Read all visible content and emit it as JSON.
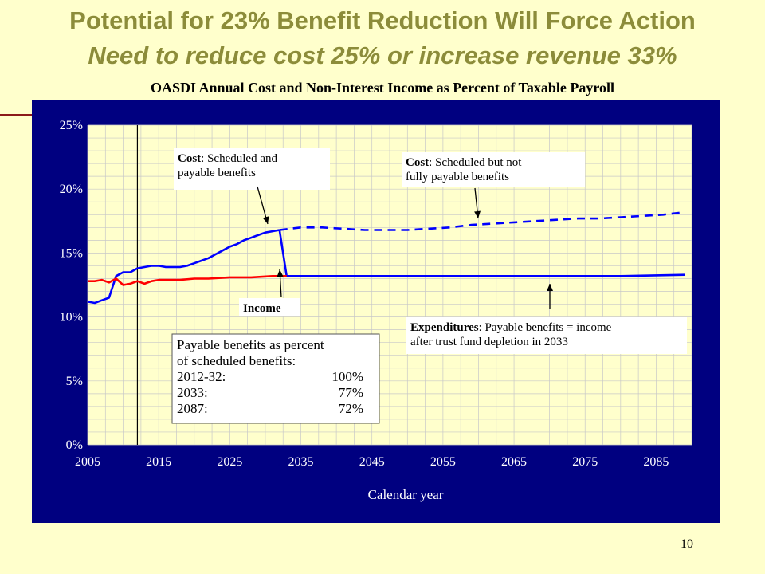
{
  "slide": {
    "title": "Potential for 23% Benefit Reduction Will Force Action",
    "subtitle": "Need to reduce cost 25% or increase revenue 33%",
    "page_number": "10"
  },
  "colors": {
    "background": "#ffffcc",
    "title": "#8c8c3a",
    "panel": "#000080",
    "plot_area": "#ffffcc",
    "cost_line": "#0000ff",
    "income_line": "#ff0000",
    "grid": "#c8c8c8"
  },
  "chart_data": {
    "type": "line",
    "title": "OASDI Annual Cost and Non-Interest Income as Percent of Taxable Payroll",
    "xlabel": "Calendar year",
    "ylabel": "",
    "xlim": [
      2005,
      2090
    ],
    "ylim": [
      0,
      25
    ],
    "x_ticks": [
      2005,
      2015,
      2025,
      2035,
      2045,
      2055,
      2065,
      2075,
      2085
    ],
    "y_ticks": [
      0,
      5,
      10,
      15,
      20,
      25
    ],
    "y_tick_labels": [
      "0%",
      "5%",
      "10%",
      "15%",
      "20%",
      "25%"
    ],
    "grid": true,
    "vertical_marker_x": 2012,
    "series": [
      {
        "key": "cost_scheduled_payable",
        "style": "solid",
        "color": "#0000ff",
        "x": [
          2005,
          2006,
          2007,
          2008,
          2009,
          2010,
          2011,
          2012,
          2013,
          2014,
          2015,
          2016,
          2017,
          2018,
          2019,
          2020,
          2021,
          2022,
          2023,
          2024,
          2025,
          2026,
          2027,
          2028,
          2029,
          2030,
          2031,
          2032
        ],
        "y": [
          11.2,
          11.1,
          11.3,
          11.5,
          13.2,
          13.5,
          13.5,
          13.8,
          13.9,
          14.0,
          14.0,
          13.9,
          13.9,
          13.9,
          14.0,
          14.2,
          14.4,
          14.6,
          14.9,
          15.2,
          15.5,
          15.7,
          16.0,
          16.2,
          16.4,
          16.6,
          16.7,
          16.8
        ]
      },
      {
        "key": "cost_scheduled_not_payable",
        "style": "dashed",
        "color": "#0000ff",
        "x": [
          2032,
          2035,
          2038,
          2041,
          2044,
          2047,
          2050,
          2053,
          2056,
          2059,
          2062,
          2065,
          2068,
          2071,
          2074,
          2077,
          2080,
          2083,
          2086,
          2089
        ],
        "y": [
          16.8,
          17.0,
          17.0,
          16.9,
          16.8,
          16.8,
          16.8,
          16.9,
          17.0,
          17.2,
          17.3,
          17.4,
          17.5,
          17.6,
          17.7,
          17.7,
          17.8,
          17.9,
          18.0,
          18.2
        ]
      },
      {
        "key": "expenditures_payable",
        "style": "solid",
        "color": "#0000ff",
        "x": [
          2032,
          2033,
          2040,
          2050,
          2060,
          2070,
          2080,
          2089
        ],
        "y": [
          16.8,
          13.2,
          13.2,
          13.2,
          13.2,
          13.2,
          13.2,
          13.3
        ]
      },
      {
        "key": "income",
        "style": "solid",
        "color": "#ff0000",
        "x": [
          2005,
          2006,
          2007,
          2008,
          2009,
          2010,
          2011,
          2012,
          2013,
          2014,
          2015,
          2016,
          2018,
          2020,
          2022,
          2025,
          2028,
          2031,
          2033
        ],
        "y": [
          12.8,
          12.8,
          12.9,
          12.7,
          13.0,
          12.5,
          12.6,
          12.8,
          12.6,
          12.8,
          12.9,
          12.9,
          12.9,
          13.0,
          13.0,
          13.1,
          13.1,
          13.2,
          13.2
        ]
      }
    ],
    "annotations": [
      {
        "key": "cost_payable",
        "bold": "Cost",
        "lines": [
          ": Scheduled and",
          "payable benefits"
        ]
      },
      {
        "key": "cost_not_payable",
        "bold": "Cost",
        "lines": [
          ": Scheduled but not",
          "fully payable benefits"
        ]
      },
      {
        "key": "income",
        "bold": "Income",
        "lines": []
      },
      {
        "key": "expenditures",
        "bold": "Expenditures",
        "lines": [
          ": Payable benefits = income",
          "after trust fund depletion in 2033"
        ]
      }
    ],
    "info_box": {
      "lines": [
        "Payable benefits as percent",
        "of scheduled benefits:"
      ],
      "rows": [
        {
          "label": "2012-32:",
          "value": "100%"
        },
        {
          "label": "2033:",
          "value": "77%"
        },
        {
          "label": "2087:",
          "value": "72%"
        }
      ]
    }
  }
}
